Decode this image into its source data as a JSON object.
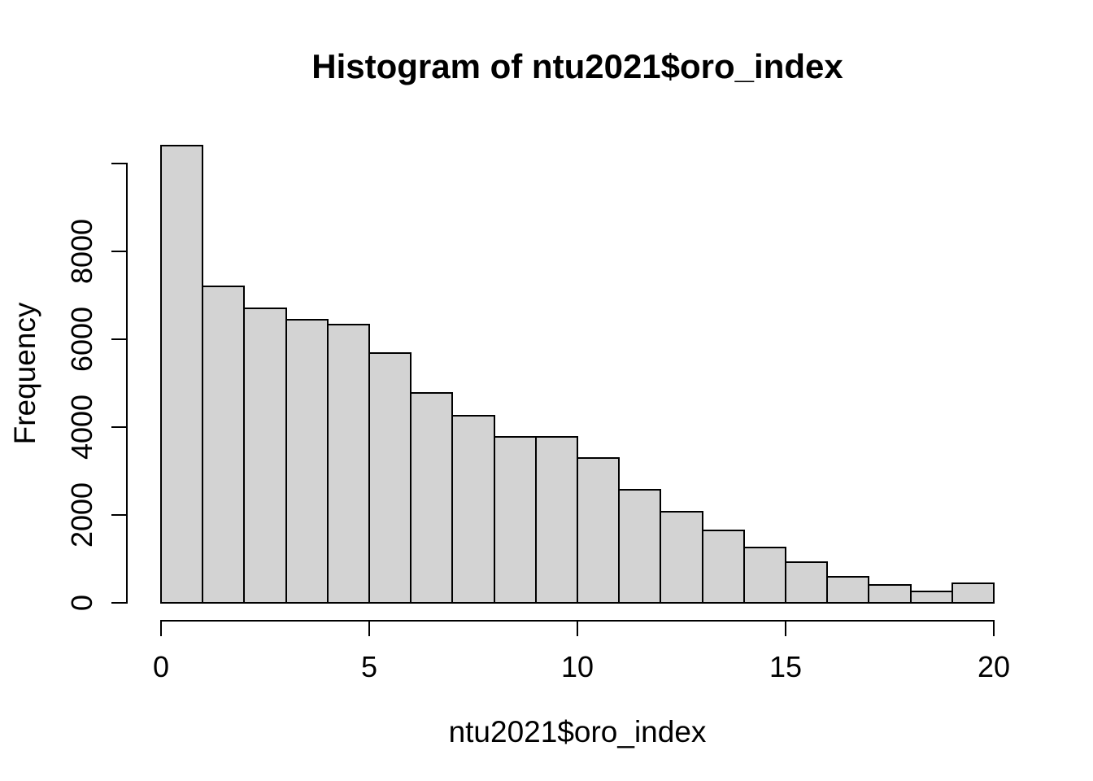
{
  "chart_data": {
    "type": "bar",
    "subtype": "histogram",
    "title": "Histogram of ntu2021$oro_index",
    "xlabel": "ntu2021$oro_index",
    "ylabel": "Frequency",
    "bin_width": 1,
    "bin_edges": [
      0,
      1,
      2,
      3,
      4,
      5,
      6,
      7,
      8,
      9,
      10,
      11,
      12,
      13,
      14,
      15,
      16,
      17,
      18,
      19,
      20
    ],
    "counts": [
      10400,
      7200,
      6700,
      6450,
      6330,
      5690,
      4780,
      4260,
      3780,
      3780,
      3300,
      2570,
      2070,
      1650,
      1260,
      930,
      590,
      410,
      260,
      440
    ],
    "x_ticks": [
      {
        "value": 0,
        "label": "0"
      },
      {
        "value": 5,
        "label": "5"
      },
      {
        "value": 10,
        "label": "10"
      },
      {
        "value": 15,
        "label": "15"
      },
      {
        "value": 20,
        "label": "20"
      }
    ],
    "y_ticks": [
      {
        "value": 0,
        "label": "0"
      },
      {
        "value": 2000,
        "label": "2000"
      },
      {
        "value": 4000,
        "label": "4000"
      },
      {
        "value": 6000,
        "label": "6000"
      },
      {
        "value": 8000,
        "label": "8000"
      },
      {
        "value": 10000,
        "label": ""
      }
    ],
    "xlim": [
      0,
      20
    ],
    "ylim": [
      0,
      10800
    ],
    "grid": false,
    "legend": null,
    "bar_fill": "#d3d3d3",
    "bar_border": "#000000",
    "axis_color": "#000000",
    "text_color": "#000000",
    "background": "#ffffff"
  }
}
